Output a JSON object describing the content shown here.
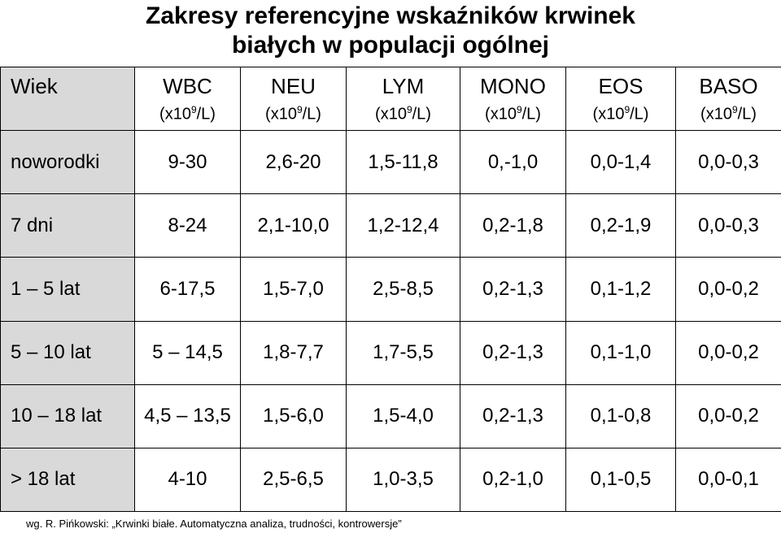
{
  "title": {
    "line1": "Zakresy referencyjne wskaźników krwinek",
    "line2": "białych w populacji ogólnej"
  },
  "table": {
    "corner_label": "Wiek",
    "columns": [
      {
        "name": "WBC",
        "unit_pre": "(x10",
        "unit_sup": "9",
        "unit_post": "/L)"
      },
      {
        "name": "NEU",
        "unit_pre": "(x10",
        "unit_sup": "9",
        "unit_post": "/L)"
      },
      {
        "name": "LYM",
        "unit_pre": "(x10",
        "unit_sup": "9",
        "unit_post": "/L)"
      },
      {
        "name": "MONO",
        "unit_pre": "(x10",
        "unit_sup": "9",
        "unit_post": "/L)"
      },
      {
        "name": "EOS",
        "unit_pre": "(x10",
        "unit_sup": "9",
        "unit_post": "/L)"
      },
      {
        "name": "BASO",
        "unit_pre": "(x10",
        "unit_sup": "9",
        "unit_post": "/L)"
      }
    ],
    "rows": [
      {
        "age": "noworodki",
        "values": [
          "9-30",
          "2,6-20",
          "1,5-11,8",
          "0,-1,0",
          "0,0-1,4",
          "0,0-0,3"
        ]
      },
      {
        "age": "7 dni",
        "values": [
          "8-24",
          "2,1-10,0",
          "1,2-12,4",
          "0,2-1,8",
          "0,2-1,9",
          "0,0-0,3"
        ]
      },
      {
        "age": "1 – 5 lat",
        "values": [
          "6-17,5",
          "1,5-7,0",
          "2,5-8,5",
          "0,2-1,3",
          "0,1-1,2",
          "0,0-0,2"
        ]
      },
      {
        "age": "5 – 10 lat",
        "values": [
          "5 – 14,5",
          "1,8-7,7",
          "1,7-5,5",
          "0,2-1,3",
          "0,1-1,0",
          "0,0-0,2"
        ]
      },
      {
        "age": "10 – 18 lat",
        "values": [
          "4,5 – 13,5",
          "1,5-6,0",
          "1,5-4,0",
          "0,2-1,3",
          "0,1-0,8",
          "0,0-0,2"
        ]
      },
      {
        "age": "> 18 lat",
        "values": [
          "4-10",
          "2,5-6,5",
          "1,0-3,5",
          "0,2-1,0",
          "0,1-0,5",
          "0,0-0,1"
        ]
      }
    ]
  },
  "footer": "wg. R. Pińkowski: „Krwinki białe. Automatyczna analiza, trudności, kontrowersje”",
  "colors": {
    "label_column_bg": "#d9d9d9",
    "border": "#000000"
  }
}
